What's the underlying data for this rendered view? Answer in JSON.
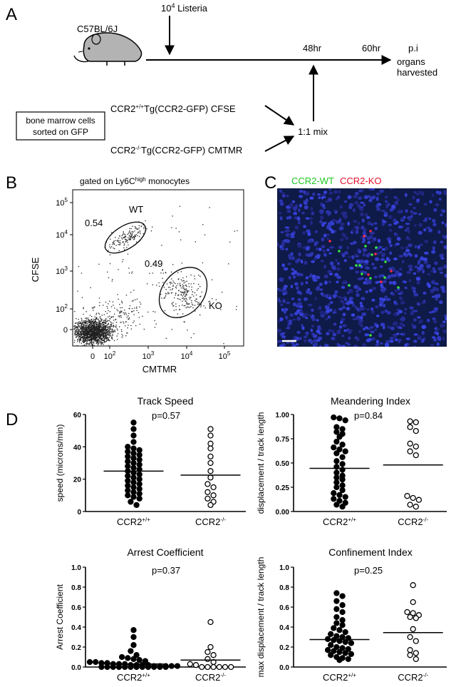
{
  "panel_a": {
    "label": "A",
    "mouse_label": "C57BL/6J",
    "infection": {
      "base": "10",
      "exp": "4",
      "text": " Listeria"
    },
    "t48": "48hr",
    "t60": "60hr",
    "pi": "p.i",
    "organs_line1": "organs",
    "organs_line2": "harvested",
    "box_line1": "bone marrow cells",
    "box_line2": "sorted on GFP",
    "wt_cells": {
      "pre": "CCR2",
      "sup": "+/+",
      "post": "Tg(CCR2-GFP) CFSE"
    },
    "ko_cells": {
      "pre": "CCR2",
      "sup": "-/-",
      "post": "Tg(CCR2-GFP) CMTMR"
    },
    "mix": "1:1 mix"
  },
  "panel_b": {
    "label": "B",
    "title_pre": "gated on Ly6C",
    "title_sup": "high",
    "title_post": " monocytes",
    "ylabel": "CFSE",
    "xlabel": "CMTMR",
    "gate_wt_pct": "0.54",
    "gate_wt_name": "WT",
    "gate_ko_pct": "0.49",
    "gate_ko_name": "KO",
    "yticks": [
      {
        "b": "10",
        "e": "5"
      },
      {
        "b": "10",
        "e": "4"
      },
      {
        "b": "10",
        "e": "3"
      },
      {
        "b": "10",
        "e": "2"
      },
      {
        "b": "0",
        "e": ""
      }
    ],
    "xticks": [
      {
        "b": "0",
        "e": ""
      },
      {
        "b": "10",
        "e": "2"
      },
      {
        "b": "10",
        "e": "3"
      },
      {
        "b": "10",
        "e": "4"
      },
      {
        "b": "10",
        "e": "5"
      }
    ]
  },
  "panel_c": {
    "label": "C",
    "legend_wt": "CCR2-WT",
    "legend_ko": "CCR2-KO",
    "colors": {
      "bg": "#0e1a48",
      "wt": "#39e639",
      "ko": "#ff2a4a"
    }
  },
  "panel_d": {
    "label": "D"
  },
  "chart_data": [
    {
      "type": "scatter",
      "title": "Track Speed",
      "ylabel": "speed (microns/min)",
      "ylim": [
        0,
        60
      ],
      "yticks": [
        "0",
        "20",
        "40",
        "60"
      ],
      "pvalue": "p=0.57",
      "categories": [
        {
          "pre": "CCR2",
          "sup": "+/+"
        },
        {
          "pre": "CCR2",
          "sup": "-/-"
        }
      ],
      "series": [
        {
          "filled": true,
          "mean": 25,
          "values": [
            55,
            51,
            47,
            43,
            40,
            39,
            38,
            37,
            36,
            35,
            34,
            33,
            32,
            31,
            30,
            29,
            28,
            27,
            26,
            25,
            24,
            23,
            22,
            21,
            20,
            19,
            18,
            17,
            16,
            15,
            14,
            13,
            12,
            11,
            10,
            9,
            8,
            6,
            4
          ]
        },
        {
          "filled": false,
          "mean": 22.5,
          "values": [
            51,
            47,
            42,
            39,
            34,
            30,
            25,
            21,
            17,
            15,
            12,
            10,
            8,
            6,
            4
          ]
        }
      ]
    },
    {
      "type": "scatter",
      "title": "Meandering Index",
      "ylabel": "displacement / track length",
      "ylim": [
        0,
        1
      ],
      "yticks": [
        "0.00",
        "0.25",
        "0.50",
        "0.75",
        "1.00"
      ],
      "pvalue": "p=0.84",
      "categories": [
        {
          "pre": "CCR2",
          "sup": "+/+"
        },
        {
          "pre": "CCR2",
          "sup": "-/-"
        }
      ],
      "series": [
        {
          "filled": true,
          "mean": 0.445,
          "values": [
            0.97,
            0.96,
            0.94,
            0.87,
            0.85,
            0.82,
            0.8,
            0.77,
            0.72,
            0.69,
            0.66,
            0.64,
            0.62,
            0.6,
            0.56,
            0.52,
            0.49,
            0.46,
            0.43,
            0.4,
            0.37,
            0.35,
            0.33,
            0.3,
            0.27,
            0.25,
            0.22,
            0.19,
            0.17,
            0.15,
            0.13,
            0.11,
            0.09,
            0.07,
            0.05
          ]
        },
        {
          "filled": false,
          "mean": 0.48,
          "values": [
            0.93,
            0.92,
            0.87,
            0.83,
            0.7,
            0.67,
            0.62,
            0.58,
            0.16,
            0.14,
            0.12,
            0.07,
            0.05
          ]
        }
      ]
    },
    {
      "type": "scatter",
      "title": "Arrest Coefficient",
      "ylabel": "Arrest Coefficient",
      "ylim": [
        0,
        1
      ],
      "yticks": [
        "0.0",
        "0.2",
        "0.4",
        "0.6",
        "0.8",
        "1.0"
      ],
      "pvalue": "p=0.37",
      "categories": [
        {
          "pre": "CCR2",
          "sup": "+/+"
        },
        {
          "pre": "CCR2",
          "sup": "-/-"
        }
      ],
      "series": [
        {
          "filled": true,
          "mean": 0.03,
          "values": [
            0.37,
            0.3,
            0.22,
            0.16,
            0.12,
            0.1,
            0.09,
            0.08,
            0.07,
            0.06,
            0.05,
            0.05,
            0.04,
            0.04,
            0.03,
            0.03,
            0.03,
            0.02,
            0.02,
            0.02,
            0.02,
            0.01,
            0.01,
            0.01,
            0.01,
            0.01,
            0.0,
            0.0,
            0.0,
            0.0,
            0.0,
            0.0,
            0.0,
            0.0,
            0.0,
            0.0,
            0.0,
            0.0
          ]
        },
        {
          "filled": false,
          "mean": 0.07,
          "values": [
            0.45,
            0.2,
            0.15,
            0.12,
            0.08,
            0.05,
            0.03,
            0.02,
            0.0,
            0.0,
            0.0,
            0.0,
            0.0,
            0.0
          ]
        }
      ]
    },
    {
      "type": "scatter",
      "title": "Confinement Index",
      "ylabel": "max displacement / track length",
      "ylim": [
        0,
        1
      ],
      "yticks": [
        "0.0",
        "0.2",
        "0.4",
        "0.6",
        "0.8",
        "1.0"
      ],
      "pvalue": "p=0.25",
      "categories": [
        {
          "pre": "CCR2",
          "sup": "+/+"
        },
        {
          "pre": "CCR2",
          "sup": "-/-"
        }
      ],
      "series": [
        {
          "filled": true,
          "mean": 0.275,
          "values": [
            0.74,
            0.71,
            0.66,
            0.62,
            0.58,
            0.55,
            0.5,
            0.47,
            0.44,
            0.42,
            0.39,
            0.37,
            0.35,
            0.33,
            0.31,
            0.3,
            0.29,
            0.28,
            0.27,
            0.26,
            0.25,
            0.24,
            0.22,
            0.2,
            0.19,
            0.18,
            0.17,
            0.16,
            0.15,
            0.14,
            0.13,
            0.12,
            0.1,
            0.09,
            0.08,
            0.07
          ]
        },
        {
          "filled": false,
          "mean": 0.345,
          "values": [
            0.82,
            0.65,
            0.55,
            0.54,
            0.52,
            0.5,
            0.49,
            0.38,
            0.3,
            0.26,
            0.17,
            0.14,
            0.12,
            0.08
          ]
        }
      ]
    }
  ]
}
